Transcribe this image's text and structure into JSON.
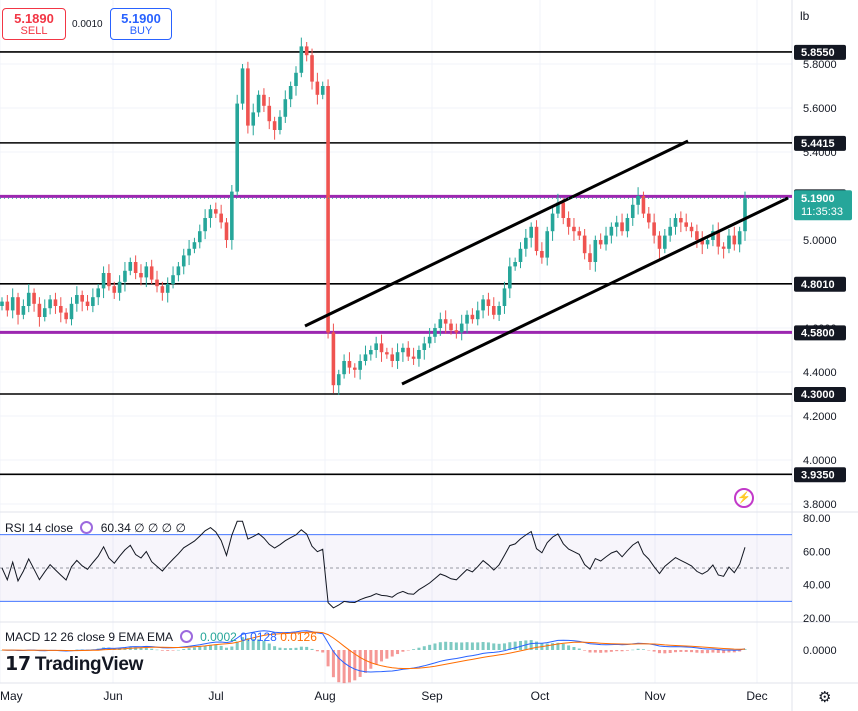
{
  "trade": {
    "sell_price": "5.1890",
    "sell_label": "SELL",
    "buy_price": "5.1900",
    "buy_label": "BUY",
    "spread": "0.0010"
  },
  "unit_label": "lb",
  "logo": "TradingView",
  "icons": {
    "logo": "tradingview-logo-icon",
    "settings": "gear-icon",
    "spark": "lightning-icon"
  },
  "rsi_legend": {
    "label": "RSI 14 close",
    "value": "60.34",
    "extras": "∅ ∅ ∅ ∅"
  },
  "macd_legend": {
    "label": "MACD 12 26 close 9 EMA EMA",
    "v1": "0.0002",
    "v2": "0.0128",
    "v3": "0.0126"
  },
  "colors": {
    "up": "#26a69a",
    "down": "#ef5350",
    "purple": "#9c27b0",
    "rsi": "#131722",
    "macd": "#2962ff",
    "signal": "#ff6d00",
    "current": "#26a69a"
  },
  "chart_data": {
    "type": "candlestick",
    "price_axis": {
      "ticks": [
        "5.8000",
        "5.6000",
        "5.4000",
        "5.2000",
        "5.0000",
        "4.8000",
        "4.6000",
        "4.4000",
        "4.2000",
        "4.0000",
        "3.8000"
      ],
      "range": [
        3.74,
        5.97
      ]
    },
    "time_axis": [
      "May",
      "Jun",
      "Jul",
      "Aug",
      "Sep",
      "Oct",
      "Nov",
      "Dec"
    ],
    "horizontal_levels": [
      {
        "value": 5.855,
        "label": "5.8550",
        "color": "#000000"
      },
      {
        "value": 5.4415,
        "label": "5.4415",
        "color": "#000000"
      },
      {
        "value": 5.1985,
        "label": "5.1985",
        "color": "#9c27b0"
      },
      {
        "value": 4.801,
        "label": "4.8010",
        "color": "#000000"
      },
      {
        "value": 4.58,
        "label": "4.5800",
        "color": "#9c27b0"
      },
      {
        "value": 4.3,
        "label": "4.3000",
        "color": "#000000"
      },
      {
        "value": 3.935,
        "label": "3.9350",
        "color": "#000000"
      }
    ],
    "current_price": {
      "value": 5.19,
      "label": "5.1900",
      "countdown": "11:35:33"
    },
    "close_series": [
      4.72,
      4.68,
      4.74,
      4.66,
      4.7,
      4.76,
      4.71,
      4.65,
      4.69,
      4.73,
      4.7,
      4.67,
      4.64,
      4.71,
      4.75,
      4.72,
      4.7,
      4.74,
      4.78,
      4.85,
      4.79,
      4.76,
      4.81,
      4.86,
      4.9,
      4.85,
      4.83,
      4.88,
      4.82,
      4.79,
      4.76,
      4.8,
      4.84,
      4.88,
      4.93,
      4.96,
      4.99,
      5.04,
      5.1,
      5.14,
      5.12,
      5.08,
      5.0,
      5.22,
      5.62,
      5.78,
      5.52,
      5.58,
      5.66,
      5.61,
      5.54,
      5.5,
      5.56,
      5.64,
      5.7,
      5.76,
      5.88,
      5.84,
      5.72,
      5.66,
      5.7,
      4.58,
      4.34,
      4.39,
      4.45,
      4.42,
      4.41,
      4.45,
      4.48,
      4.5,
      4.53,
      4.49,
      4.48,
      4.45,
      4.49,
      4.51,
      4.47,
      4.46,
      4.5,
      4.53,
      4.56,
      4.6,
      4.64,
      4.62,
      4.59,
      4.58,
      4.62,
      4.66,
      4.64,
      4.68,
      4.73,
      4.7,
      4.66,
      4.7,
      4.78,
      4.88,
      4.9,
      4.96,
      5.01,
      5.06,
      4.95,
      4.92,
      5.04,
      5.12,
      5.17,
      5.1,
      5.06,
      5.04,
      5.02,
      4.94,
      4.9,
      5.0,
      4.98,
      5.02,
      5.06,
      5.08,
      5.04,
      5.1,
      5.16,
      5.2,
      5.12,
      5.08,
      5.02,
      4.96,
      5.02,
      5.06,
      5.1,
      5.08,
      5.06,
      5.04,
      5.0,
      4.98,
      5.0,
      5.04,
      4.97,
      4.96,
      5.02,
      4.98,
      5.04,
      5.19
    ],
    "channel_lines": [
      {
        "from": [
          "Jul 29",
          4.61
        ],
        "to": [
          "Oct 31",
          5.44
        ]
      },
      {
        "from": [
          "Aug 21",
          4.34
        ],
        "to": [
          "Dec 1",
          5.17
        ]
      }
    ],
    "rsi": {
      "levels": [
        70,
        30
      ],
      "midline": 50,
      "ticks": [
        "80.00",
        "60.00",
        "40.00",
        "20.00"
      ]
    },
    "macd": {
      "ticks": [
        "0.0000"
      ]
    }
  }
}
